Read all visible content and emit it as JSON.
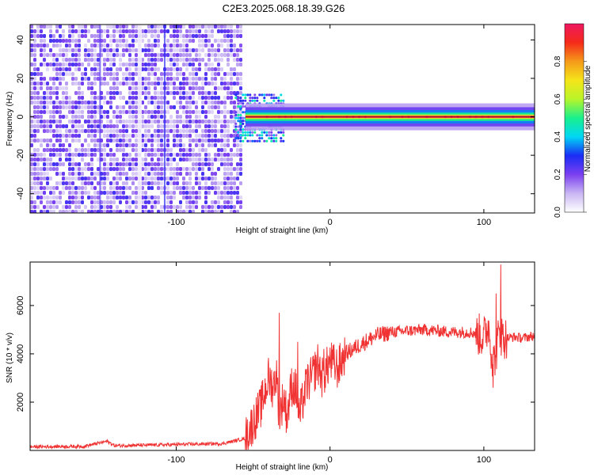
{
  "title": "C2E3.2025.068.18.39.G26",
  "chart_data": [
    {
      "type": "heatmap",
      "xlabel": "Height of straight line (km)",
      "ylabel": "Frequency (Hz)",
      "xlim": [
        -195,
        133
      ],
      "ylim": [
        -50,
        48
      ],
      "xticks": [
        -100,
        0,
        100
      ],
      "yticks": [
        -40,
        -20,
        0,
        20,
        40
      ],
      "colorbar": {
        "label": "Normalized spectral amplitude",
        "range": [
          0,
          1
        ],
        "ticks": [
          "0.0",
          "0.2",
          "0.4",
          "0.6",
          "0.8"
        ],
        "colormap": [
          "#ffffff",
          "#c9b6f3",
          "#7b3ff0",
          "#1a2cf5",
          "#00d7f5",
          "#19f08c",
          "#b8f52a",
          "#f5e51a",
          "#f59a1a",
          "#f52a1a",
          "#ee1860"
        ]
      },
      "features": [
        {
          "name": "noise",
          "x_range": [
            -195,
            -58
          ],
          "freq_range": [
            -50,
            48
          ]
        },
        {
          "name": "tone",
          "x_range": [
            -55,
            133
          ],
          "freq": 0,
          "peak": 0.95
        }
      ]
    },
    {
      "type": "line",
      "xlabel": "Height of straight line (km)",
      "ylabel": "SNR (10 * v/v)",
      "xlim": [
        -195,
        133
      ],
      "ylim": [
        0,
        7800
      ],
      "xticks": [
        -100,
        0,
        100
      ],
      "yticks": [
        2000,
        4000,
        6000
      ],
      "color": "#f03232",
      "x": [
        -195,
        -180,
        -160,
        -145,
        -140,
        -130,
        -110,
        -90,
        -70,
        -55,
        -45,
        -40,
        -37,
        -35,
        -33,
        -30,
        -28,
        -25,
        -22,
        -20,
        -15,
        -12,
        -8,
        -5,
        0,
        5,
        10,
        20,
        30,
        40,
        50,
        60,
        70,
        80,
        90,
        95,
        100,
        103,
        106,
        108,
        110,
        112,
        115,
        120,
        125,
        133
      ],
      "y": [
        150,
        160,
        170,
        380,
        200,
        210,
        230,
        260,
        280,
        500,
        1800,
        3000,
        2600,
        3200,
        1500,
        2200,
        1400,
        2700,
        2500,
        1400,
        2800,
        3000,
        3600,
        3000,
        3700,
        3400,
        4000,
        4400,
        4750,
        4900,
        4950,
        5000,
        4950,
        4900,
        4900,
        4850,
        4700,
        5200,
        3600,
        4100,
        4900,
        4700,
        4650,
        4700,
        4650,
        4750
      ],
      "spikes": [
        {
          "x": -33,
          "y": 5700
        },
        {
          "x": -21,
          "y": 4500
        },
        {
          "x": -4,
          "y": 4200
        },
        {
          "x": 106,
          "y": 2600
        },
        {
          "x": 108,
          "y": 6500
        },
        {
          "x": 111,
          "y": 7700
        }
      ]
    }
  ]
}
